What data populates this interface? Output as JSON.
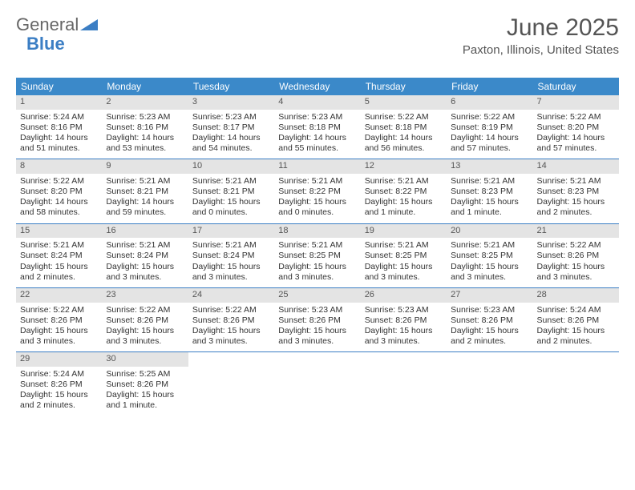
{
  "brand": {
    "part1": "General",
    "part2": "Blue"
  },
  "title": "June 2025",
  "location": "Paxton, Illinois, United States",
  "colors": {
    "header_bg": "#3b89c9",
    "daynum_bg": "#e4e4e4",
    "rule": "#3b7ec4",
    "brand_blue": "#3b7ec4"
  },
  "weekdays": [
    "Sunday",
    "Monday",
    "Tuesday",
    "Wednesday",
    "Thursday",
    "Friday",
    "Saturday"
  ],
  "weeks": [
    [
      {
        "n": "1",
        "sr": "Sunrise: 5:24 AM",
        "ss": "Sunset: 8:16 PM",
        "d1": "Daylight: 14 hours",
        "d2": "and 51 minutes."
      },
      {
        "n": "2",
        "sr": "Sunrise: 5:23 AM",
        "ss": "Sunset: 8:16 PM",
        "d1": "Daylight: 14 hours",
        "d2": "and 53 minutes."
      },
      {
        "n": "3",
        "sr": "Sunrise: 5:23 AM",
        "ss": "Sunset: 8:17 PM",
        "d1": "Daylight: 14 hours",
        "d2": "and 54 minutes."
      },
      {
        "n": "4",
        "sr": "Sunrise: 5:23 AM",
        "ss": "Sunset: 8:18 PM",
        "d1": "Daylight: 14 hours",
        "d2": "and 55 minutes."
      },
      {
        "n": "5",
        "sr": "Sunrise: 5:22 AM",
        "ss": "Sunset: 8:18 PM",
        "d1": "Daylight: 14 hours",
        "d2": "and 56 minutes."
      },
      {
        "n": "6",
        "sr": "Sunrise: 5:22 AM",
        "ss": "Sunset: 8:19 PM",
        "d1": "Daylight: 14 hours",
        "d2": "and 57 minutes."
      },
      {
        "n": "7",
        "sr": "Sunrise: 5:22 AM",
        "ss": "Sunset: 8:20 PM",
        "d1": "Daylight: 14 hours",
        "d2": "and 57 minutes."
      }
    ],
    [
      {
        "n": "8",
        "sr": "Sunrise: 5:22 AM",
        "ss": "Sunset: 8:20 PM",
        "d1": "Daylight: 14 hours",
        "d2": "and 58 minutes."
      },
      {
        "n": "9",
        "sr": "Sunrise: 5:21 AM",
        "ss": "Sunset: 8:21 PM",
        "d1": "Daylight: 14 hours",
        "d2": "and 59 minutes."
      },
      {
        "n": "10",
        "sr": "Sunrise: 5:21 AM",
        "ss": "Sunset: 8:21 PM",
        "d1": "Daylight: 15 hours",
        "d2": "and 0 minutes."
      },
      {
        "n": "11",
        "sr": "Sunrise: 5:21 AM",
        "ss": "Sunset: 8:22 PM",
        "d1": "Daylight: 15 hours",
        "d2": "and 0 minutes."
      },
      {
        "n": "12",
        "sr": "Sunrise: 5:21 AM",
        "ss": "Sunset: 8:22 PM",
        "d1": "Daylight: 15 hours",
        "d2": "and 1 minute."
      },
      {
        "n": "13",
        "sr": "Sunrise: 5:21 AM",
        "ss": "Sunset: 8:23 PM",
        "d1": "Daylight: 15 hours",
        "d2": "and 1 minute."
      },
      {
        "n": "14",
        "sr": "Sunrise: 5:21 AM",
        "ss": "Sunset: 8:23 PM",
        "d1": "Daylight: 15 hours",
        "d2": "and 2 minutes."
      }
    ],
    [
      {
        "n": "15",
        "sr": "Sunrise: 5:21 AM",
        "ss": "Sunset: 8:24 PM",
        "d1": "Daylight: 15 hours",
        "d2": "and 2 minutes."
      },
      {
        "n": "16",
        "sr": "Sunrise: 5:21 AM",
        "ss": "Sunset: 8:24 PM",
        "d1": "Daylight: 15 hours",
        "d2": "and 3 minutes."
      },
      {
        "n": "17",
        "sr": "Sunrise: 5:21 AM",
        "ss": "Sunset: 8:24 PM",
        "d1": "Daylight: 15 hours",
        "d2": "and 3 minutes."
      },
      {
        "n": "18",
        "sr": "Sunrise: 5:21 AM",
        "ss": "Sunset: 8:25 PM",
        "d1": "Daylight: 15 hours",
        "d2": "and 3 minutes."
      },
      {
        "n": "19",
        "sr": "Sunrise: 5:21 AM",
        "ss": "Sunset: 8:25 PM",
        "d1": "Daylight: 15 hours",
        "d2": "and 3 minutes."
      },
      {
        "n": "20",
        "sr": "Sunrise: 5:21 AM",
        "ss": "Sunset: 8:25 PM",
        "d1": "Daylight: 15 hours",
        "d2": "and 3 minutes."
      },
      {
        "n": "21",
        "sr": "Sunrise: 5:22 AM",
        "ss": "Sunset: 8:26 PM",
        "d1": "Daylight: 15 hours",
        "d2": "and 3 minutes."
      }
    ],
    [
      {
        "n": "22",
        "sr": "Sunrise: 5:22 AM",
        "ss": "Sunset: 8:26 PM",
        "d1": "Daylight: 15 hours",
        "d2": "and 3 minutes."
      },
      {
        "n": "23",
        "sr": "Sunrise: 5:22 AM",
        "ss": "Sunset: 8:26 PM",
        "d1": "Daylight: 15 hours",
        "d2": "and 3 minutes."
      },
      {
        "n": "24",
        "sr": "Sunrise: 5:22 AM",
        "ss": "Sunset: 8:26 PM",
        "d1": "Daylight: 15 hours",
        "d2": "and 3 minutes."
      },
      {
        "n": "25",
        "sr": "Sunrise: 5:23 AM",
        "ss": "Sunset: 8:26 PM",
        "d1": "Daylight: 15 hours",
        "d2": "and 3 minutes."
      },
      {
        "n": "26",
        "sr": "Sunrise: 5:23 AM",
        "ss": "Sunset: 8:26 PM",
        "d1": "Daylight: 15 hours",
        "d2": "and 3 minutes."
      },
      {
        "n": "27",
        "sr": "Sunrise: 5:23 AM",
        "ss": "Sunset: 8:26 PM",
        "d1": "Daylight: 15 hours",
        "d2": "and 2 minutes."
      },
      {
        "n": "28",
        "sr": "Sunrise: 5:24 AM",
        "ss": "Sunset: 8:26 PM",
        "d1": "Daylight: 15 hours",
        "d2": "and 2 minutes."
      }
    ],
    [
      {
        "n": "29",
        "sr": "Sunrise: 5:24 AM",
        "ss": "Sunset: 8:26 PM",
        "d1": "Daylight: 15 hours",
        "d2": "and 2 minutes."
      },
      {
        "n": "30",
        "sr": "Sunrise: 5:25 AM",
        "ss": "Sunset: 8:26 PM",
        "d1": "Daylight: 15 hours",
        "d2": "and 1 minute."
      },
      null,
      null,
      null,
      null,
      null
    ]
  ]
}
